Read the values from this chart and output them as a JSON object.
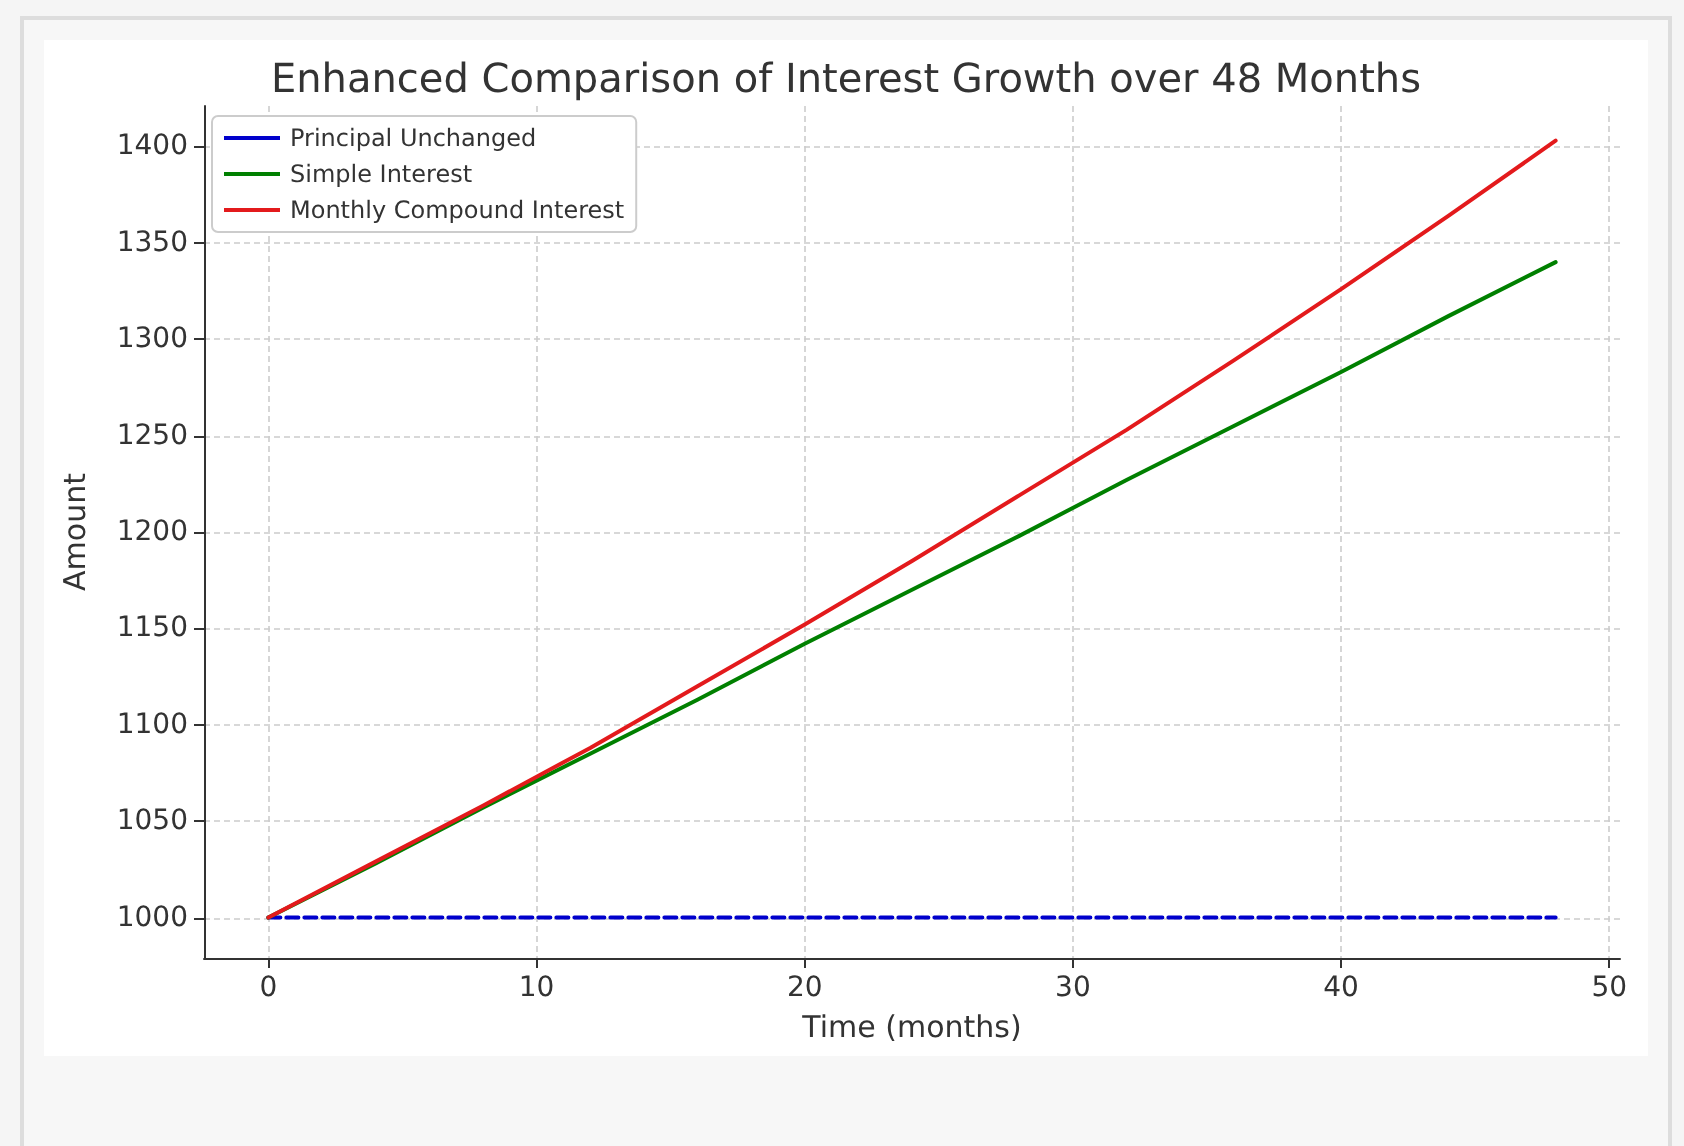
{
  "chart_data": {
    "type": "line",
    "title": "Enhanced Comparison of Interest Growth over 48 Months",
    "xlabel": "Time (months)",
    "ylabel": "Amount",
    "x": [
      0,
      4,
      8,
      12,
      16,
      20,
      24,
      28,
      32,
      36,
      40,
      44,
      48
    ],
    "series": [
      {
        "name": "Principal Unchanged",
        "color": "#0000cc",
        "line_style": "dashed",
        "values": [
          1000,
          1000,
          1000,
          1000,
          1000,
          1000,
          1000,
          1000,
          1000,
          1000,
          1000,
          1000,
          1000
        ]
      },
      {
        "name": "Simple Interest",
        "color": "#008000",
        "line_style": "solid",
        "values": [
          1000,
          1028,
          1057,
          1085,
          1113,
          1142,
          1170,
          1198,
          1227,
          1255,
          1283,
          1312,
          1340
        ]
      },
      {
        "name": "Monthly Compound Interest",
        "color": "#e31a1c",
        "line_style": "solid",
        "values": [
          1000,
          1029,
          1058,
          1088,
          1120,
          1152,
          1185,
          1219,
          1253,
          1289,
          1326,
          1364,
          1403
        ]
      }
    ],
    "xlim": [
      -2.4,
      50.4
    ],
    "xticks": [
      0,
      10,
      20,
      30,
      40,
      50
    ],
    "ylim": [
      979,
      1421
    ],
    "yticks": [
      1000,
      1050,
      1100,
      1150,
      1200,
      1250,
      1300,
      1350,
      1400
    ],
    "grid": true,
    "legend": "top left",
    "marker": "none"
  }
}
